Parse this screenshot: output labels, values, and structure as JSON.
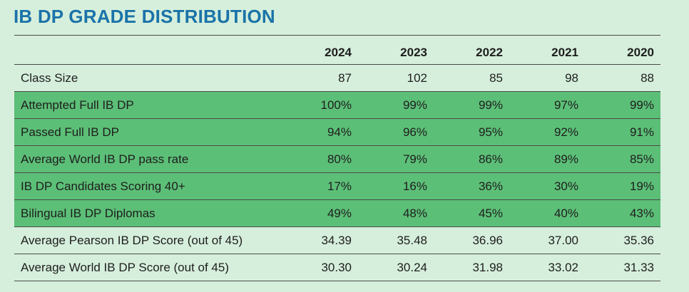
{
  "title": "IB DP GRADE DISTRIBUTION",
  "colors": {
    "title": "#1a73a8",
    "background": "#d6efdc",
    "highlight": "#5cbf77"
  },
  "table": {
    "years": [
      "2024",
      "2023",
      "2022",
      "2021",
      "2020"
    ],
    "rows": [
      {
        "label": "Class Size",
        "values": [
          "87",
          "102",
          "85",
          "98",
          "88"
        ],
        "highlighted": false
      },
      {
        "label": "Attempted Full IB DP",
        "values": [
          "100%",
          "99%",
          "99%",
          "97%",
          "99%"
        ],
        "highlighted": true
      },
      {
        "label": "Passed Full IB DP",
        "values": [
          "94%",
          "96%",
          "95%",
          "92%",
          "91%"
        ],
        "highlighted": true
      },
      {
        "label": "Average World IB DP pass rate",
        "values": [
          "80%",
          "79%",
          "86%",
          "89%",
          "85%"
        ],
        "highlighted": true
      },
      {
        "label": "IB DP Candidates Scoring 40+",
        "values": [
          "17%",
          "16%",
          "36%",
          "30%",
          "19%"
        ],
        "highlighted": true
      },
      {
        "label": "Bilingual IB DP Diplomas",
        "values": [
          "49%",
          "48%",
          "45%",
          "40%",
          "43%"
        ],
        "highlighted": true
      },
      {
        "label": "Average Pearson IB DP Score (out of 45)",
        "values": [
          "34.39",
          "35.48",
          "36.96",
          "37.00",
          "35.36"
        ],
        "highlighted": false
      },
      {
        "label": "Average World IB DP Score (out of 45)",
        "values": [
          "30.30",
          "30.24",
          "31.98",
          "33.02",
          "31.33"
        ],
        "highlighted": false
      }
    ]
  }
}
